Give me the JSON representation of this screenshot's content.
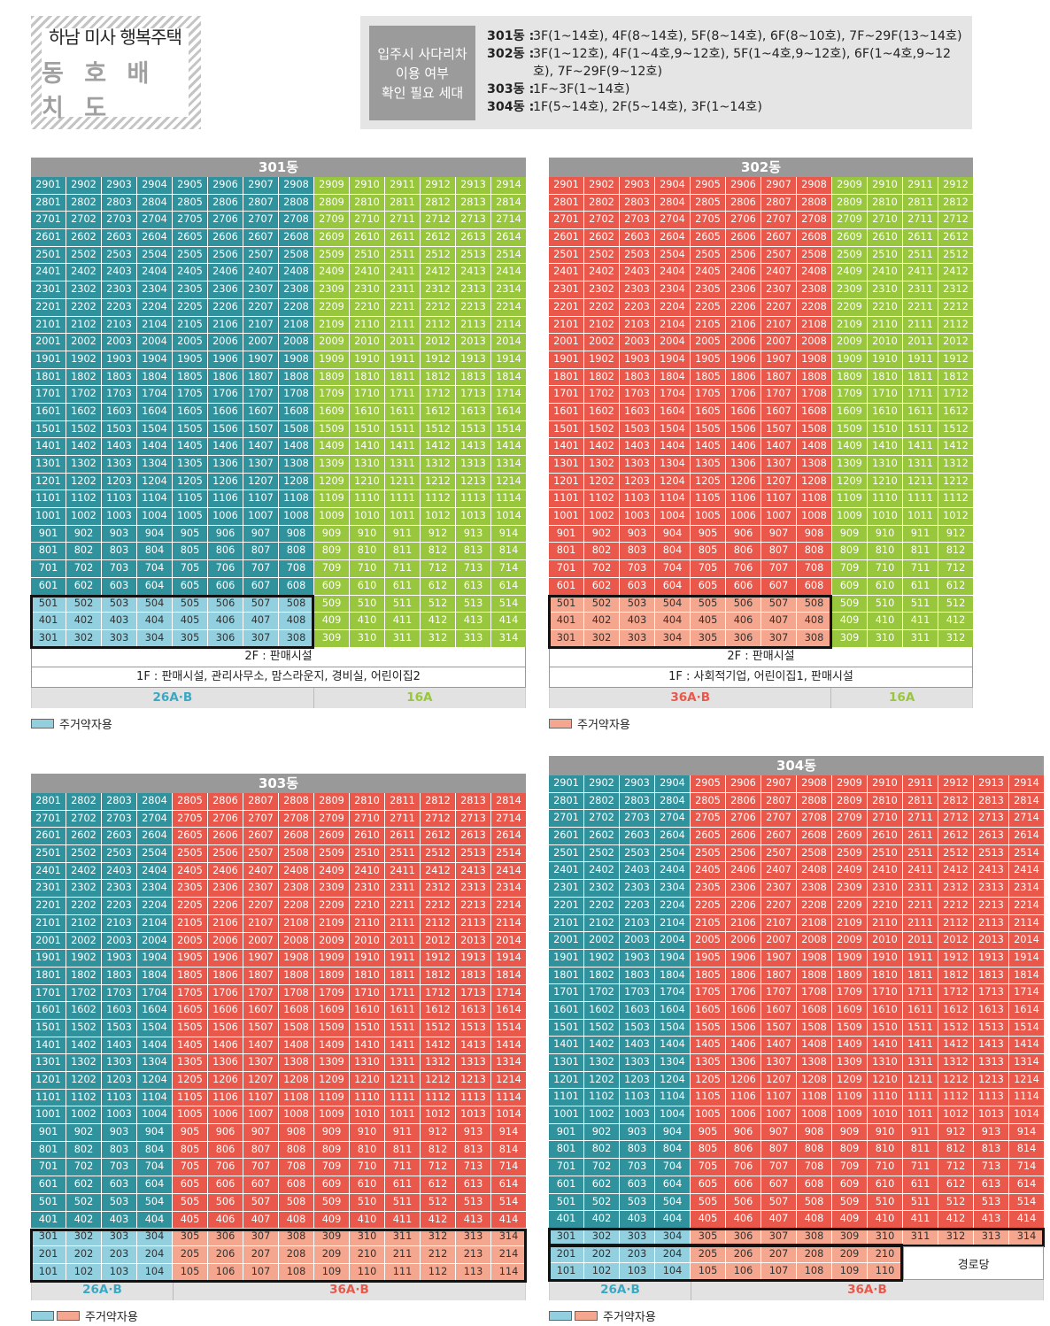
{
  "title": {
    "line1": "하남 미사 행복주택",
    "line2": "동 호 배 치 도"
  },
  "note": {
    "label_lines": [
      "입주시 사다리차",
      "이용 여부",
      "확인 필요 세대"
    ],
    "rows": [
      {
        "key": "301동 :",
        "value": "3F(1~14호), 4F(8~14호), 5F(8~14호), 6F(8~10호), 7F~29F(13~14호)"
      },
      {
        "key": "302동 :",
        "value": "3F(1~12호), 4F(1~4호,9~12호), 5F(1~4호,9~12호), 6F(1~4호,9~12호), 7F~29F(9~12호)"
      },
      {
        "key": "303동 :",
        "value": "1F~3F(1~14호)"
      },
      {
        "key": "304동 :",
        "value": "1F(5~14호), 2F(5~14호), 3F(1~14호)"
      }
    ]
  },
  "buildings": [
    {
      "id": "b301",
      "name": "301동",
      "top_floor": 29,
      "bottom_floor": 3,
      "units": 14,
      "floor_rows": [
        "2F : 판매시설",
        "1F : 판매시설, 관리사무소, 맘스라운지, 경비실, 어린이집2"
      ],
      "types": [
        {
          "label": "26A·B",
          "span": 8,
          "color": "blue"
        },
        {
          "label": "16A",
          "span": 6,
          "color": "green"
        }
      ],
      "legend": [
        "blue"
      ],
      "legend_label": "주거약자용"
    },
    {
      "id": "b302",
      "name": "302동",
      "top_floor": 29,
      "bottom_floor": 3,
      "units": 12,
      "floor_rows": [
        "2F : 판매시설",
        "1F : 사회적기업, 어린이집1, 판매시설"
      ],
      "types": [
        {
          "label": "36A·B",
          "span": 8,
          "color": "red"
        },
        {
          "label": "16A",
          "span": 4,
          "color": "green"
        }
      ],
      "legend": [
        "salmon"
      ],
      "legend_label": "주거약자용"
    },
    {
      "id": "b303",
      "name": "303동",
      "top_floor": 28,
      "bottom_floor": 1,
      "units": 14,
      "floor_rows": [],
      "types": [
        {
          "label": "26A·B",
          "span": 4,
          "color": "blue"
        },
        {
          "label": "36A·B",
          "span": 10,
          "color": "red"
        }
      ],
      "legend": [
        "blue",
        "salmon"
      ],
      "legend_label": "주거약자용"
    },
    {
      "id": "b304",
      "name": "304동",
      "top_floor": 29,
      "bottom_floor": 1,
      "units": 14,
      "floor_rows": [],
      "types": [
        {
          "label": "26A·B",
          "span": 4,
          "color": "blue"
        },
        {
          "label": "36A·B",
          "span": 10,
          "color": "red"
        }
      ],
      "legend": [
        "blue",
        "salmon"
      ],
      "legend_label": "주거약자용",
      "hall_label": "경로당"
    }
  ],
  "colors": {
    "teal": "#2f929c",
    "green": "#98c63c",
    "red": "#e9584a",
    "light_blue": "#92d0e0",
    "salmon": "#f4a68e"
  }
}
